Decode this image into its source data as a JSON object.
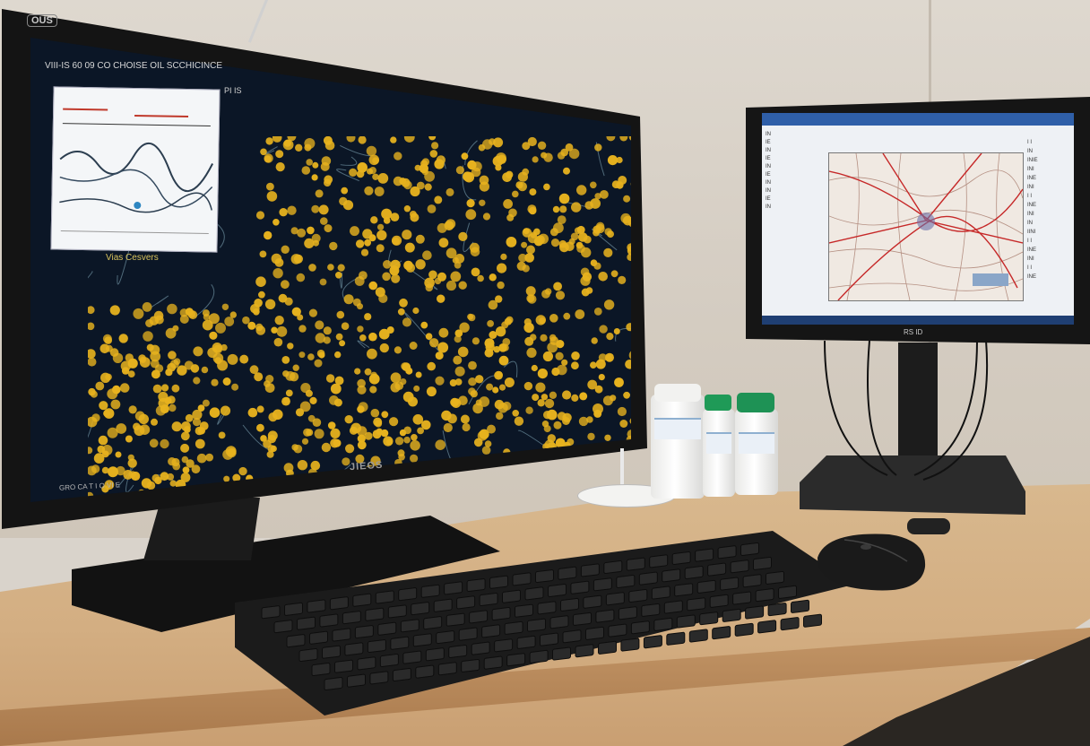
{
  "scene": {
    "description_tags": [
      "desk",
      "main-monitor",
      "secondary-monitor",
      "keyboard",
      "mouse",
      "reagent-bottles"
    ],
    "colors": {
      "wall": "#d9d3cb",
      "desk": "#d3ae82",
      "screen_bg": "#0b1626",
      "dot_color": "#e7b21e",
      "bottle_cap_green": "#1f9a57"
    }
  },
  "main_monitor": {
    "logo": "OUS",
    "brand": "JIEOS",
    "app_title": "VIII-IS 60 09 CO CHOISE OIL SCCHICINCE",
    "panel_tag": "PI IS",
    "graph_caption": "Vias Cesvers",
    "status_bar": "GRO CA T I O VI E",
    "icons": {
      "power": "power-icon"
    }
  },
  "secondary_monitor": {
    "brand": "RS ID",
    "sidebar_lines": [
      "IN",
      "IE",
      "IN",
      "IE",
      "IN",
      "IE",
      "IN",
      "IN",
      "IE",
      "IN"
    ],
    "right_lines": [
      "I I",
      "IN",
      "INIE",
      "INI",
      "INE",
      "INI",
      "I I",
      "INE",
      "INI",
      "IN",
      "IINI",
      "I I",
      "INE",
      "INI",
      "I I",
      "INE"
    ]
  },
  "bottles": [
    "white-jar",
    "green-cap-small",
    "green-cap-large"
  ]
}
